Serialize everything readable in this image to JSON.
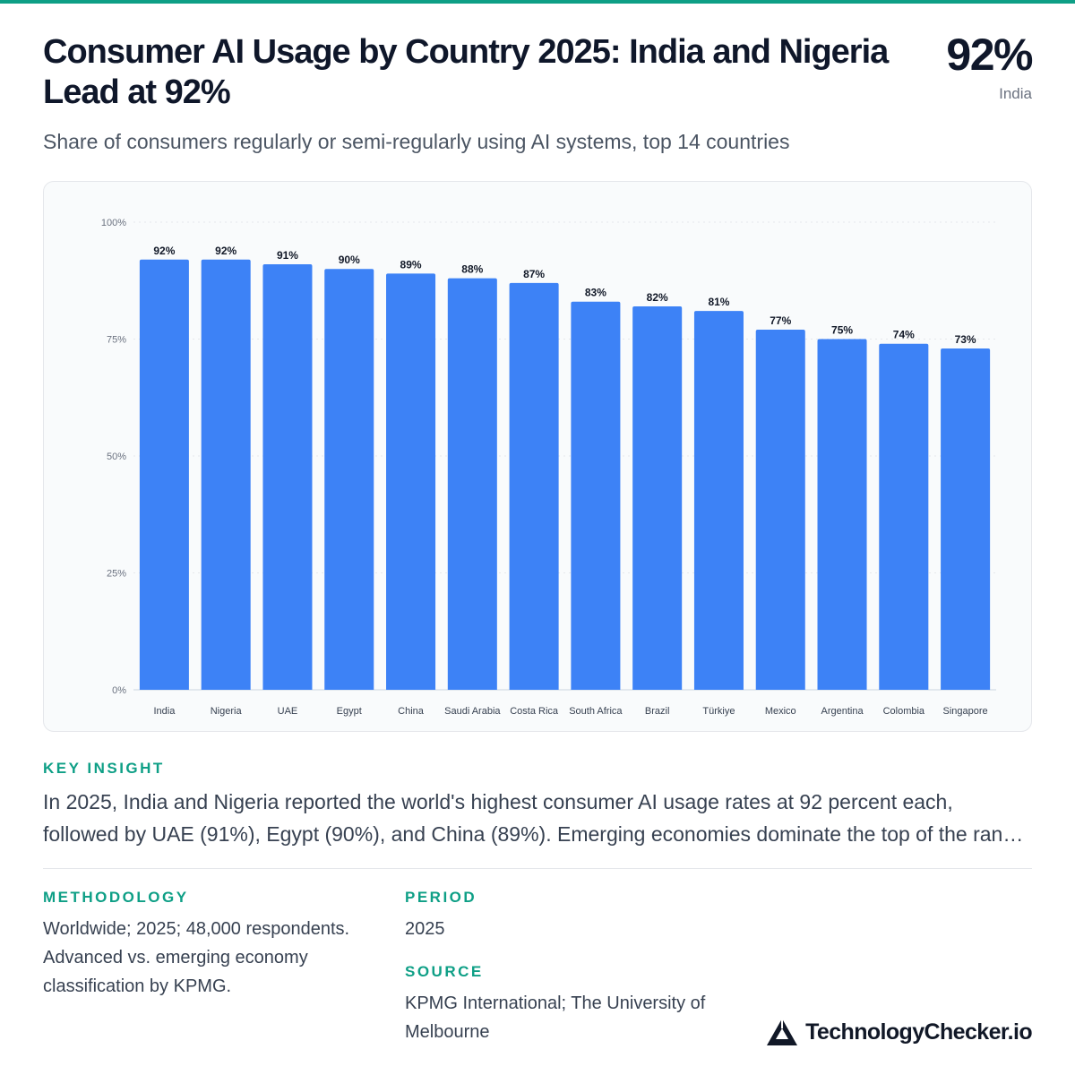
{
  "header": {
    "title": "Consumer AI Usage by Country 2025: India and Nigeria Lead at 92%",
    "subtitle": "Share of consumers regularly or semi-regularly using AI systems, top 14 countries",
    "kpi_value": "92%",
    "kpi_label": "India"
  },
  "chart_data": {
    "type": "bar",
    "categories": [
      "India",
      "Nigeria",
      "UAE",
      "Egypt",
      "China",
      "Saudi Arabia",
      "Costa Rica",
      "South Africa",
      "Brazil",
      "Türkiye",
      "Mexico",
      "Argentina",
      "Colombia",
      "Singapore"
    ],
    "values": [
      92,
      92,
      91,
      90,
      89,
      88,
      87,
      83,
      82,
      81,
      77,
      75,
      74,
      73
    ],
    "data_labels": [
      "92%",
      "92%",
      "91%",
      "90%",
      "89%",
      "88%",
      "87%",
      "83%",
      "82%",
      "81%",
      "77%",
      "75%",
      "74%",
      "73%"
    ],
    "ylim": [
      0,
      100
    ],
    "yticks": [
      0,
      25,
      50,
      75,
      100
    ],
    "ytick_labels": [
      "0%",
      "25%",
      "50%",
      "75%",
      "100%"
    ],
    "grid": true,
    "bar_color": "#3d82f6"
  },
  "insight": {
    "label": "KEY INSIGHT",
    "line1": "In 2025, India and Nigeria reported the world's highest consumer AI usage rates at 92 percent each,",
    "line2": "followed by UAE (91%), Egypt (90%), and China (89%). Emerging economies dominate the top of the rankings."
  },
  "methodology": {
    "label": "METHODOLOGY",
    "text": "Worldwide; 2025; 48,000 respondents. Advanced vs. emerging economy classification by KPMG."
  },
  "period": {
    "label": "PERIOD",
    "text": "2025"
  },
  "source": {
    "label": "SOURCE",
    "text": "KPMG International; The University of Melbourne"
  },
  "brand": {
    "name": "TechnologyChecker.io",
    "icon": "triangle-logo-icon"
  },
  "colors": {
    "accent": "#0e9f86",
    "bar": "#3d82f6"
  }
}
